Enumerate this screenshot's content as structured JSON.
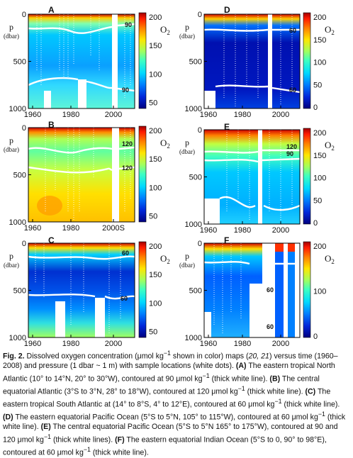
{
  "colorbar": {
    "label": "O",
    "subscript": "2",
    "stops": [
      "#00007f",
      "#0026d9",
      "#0080ff",
      "#00d9ff",
      "#3dffc2",
      "#a3ff5c",
      "#ffe600",
      "#ff8000",
      "#ff1a00",
      "#9e0000"
    ]
  },
  "panels": [
    {
      "id": "A",
      "letter": "A",
      "ylabel": "p",
      "yunit": "(dbar)",
      "yticks": [
        "0",
        "500",
        "1000"
      ],
      "xticks": [
        "1960",
        "1980",
        "2000"
      ],
      "cbar_ticks": [
        "200",
        "150",
        "100",
        "50"
      ],
      "contours": [
        "90",
        "90"
      ],
      "ostub": "2"
    },
    {
      "id": "B",
      "letter": "B",
      "ylabel": "p",
      "yunit": "(dbar)",
      "yticks": [
        "0",
        "500",
        "1000"
      ],
      "xticks": [
        "1960",
        "1980",
        "2000S"
      ],
      "cbar_ticks": [
        "200",
        "150",
        "100",
        "50"
      ],
      "contours": [
        "120",
        "120"
      ],
      "ostub": "2"
    },
    {
      "id": "C",
      "letter": "C",
      "ylabel": "p",
      "yunit": "(dbar)",
      "yticks": [
        "0",
        "500",
        "1000"
      ],
      "xticks": [
        "1960",
        "1980",
        "2000"
      ],
      "cbar_ticks": [
        "200",
        "150",
        "100",
        "50"
      ],
      "contours": [
        "60",
        "60"
      ],
      "ostub": "2"
    },
    {
      "id": "D",
      "letter": "D",
      "ylabel": "p",
      "yunit": "(dbar)",
      "yticks": [
        "0",
        "500",
        "1000"
      ],
      "xticks": [
        "1960",
        "1980",
        "2000"
      ],
      "cbar_ticks": [
        "200",
        "150",
        "100",
        "50",
        "0"
      ],
      "contours": [
        "60",
        "60"
      ],
      "ostub": "2"
    },
    {
      "id": "E",
      "letter": "E",
      "ylabel": "p",
      "yunit": "(dbar)",
      "yticks": [
        "0",
        "500",
        "1000"
      ],
      "xticks": [
        "1960",
        "1980",
        "2000"
      ],
      "cbar_ticks": [
        "200",
        "150",
        "100",
        "50",
        "0"
      ],
      "contours": [
        "120",
        "90"
      ],
      "ostub": "2"
    },
    {
      "id": "F",
      "letter": "F",
      "ylabel": "p",
      "yunit": "(dbar)",
      "yticks": [
        "0",
        "500",
        "1000"
      ],
      "xticks": [
        "1960",
        "1980",
        "2000"
      ],
      "cbar_ticks": [
        "200",
        "100",
        "0"
      ],
      "contours": [
        "60",
        "60"
      ],
      "ostub": "2"
    }
  ],
  "caption": {
    "label": "Fig. 2.",
    "t1": " Dissolved oxygen concentration (μmol kg",
    "t2": " shown in color) maps (",
    "ref1": "20, 21",
    "t3": ") versus time (1960–2008) and pressure (1 dbar ~ 1 m) with sample locations (white dots). ",
    "a": "(A)",
    "ta": " The eastern tropical North Atlantic (10° to 14°N, 20° to 30°W), contoured at 90 μmol kg",
    "tb0": " (thick white line). ",
    "b": "(B)",
    "tb": " The central equatorial Atlantic (3°S to 3°N, 28° to 18°W), contoured at 120 μmol kg",
    "tc0": " (thick white line). ",
    "c": "(C)",
    "tc": " The eastern tropical South Atlantic at (14° to 8°S, 4° to 12°E), contoured at 60 μmol kg",
    "td0": " (thick white line). ",
    "d": "(D)",
    "td": " The eastern equatorial Pacific Ocean (5°S to 5°N, 105° to 115°W), contoured at 60 μmol kg",
    "te0": " (thick white line). ",
    "e": "(E)",
    "te": " The central equatorial Pacific Ocean (5°S to 5°N 165° to 175°W), contoured at 90 and 120 μmol kg",
    "tf0": " (thick white lines). ",
    "f": "(F)",
    "tf": " The eastern equatorial Indian Ocean (5°S to 0, 90° to 98°E), contoured at 60 μmol kg",
    "tg": " (thick white line).",
    "sup": "−1"
  }
}
